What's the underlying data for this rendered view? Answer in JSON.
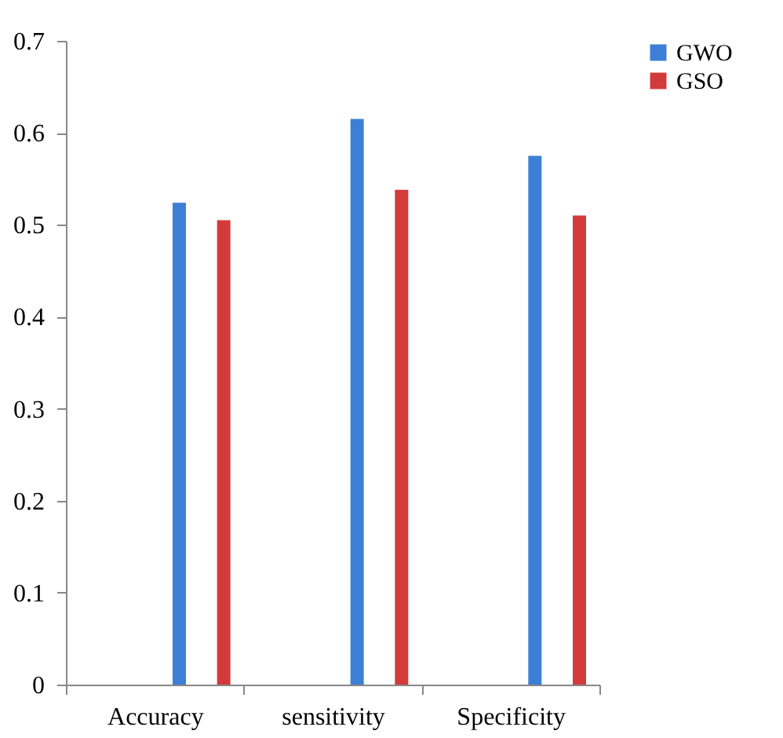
{
  "chart_data": {
    "type": "bar",
    "categories": [
      "Accuracy",
      "sensitivity",
      "Specificity"
    ],
    "series": [
      {
        "name": "GWO",
        "color": "#3d7fd6",
        "values": [
          0.524,
          0.615,
          0.575
        ]
      },
      {
        "name": "GSO",
        "color": "#d33b3b",
        "values": [
          0.505,
          0.538,
          0.51
        ]
      }
    ],
    "ylim": [
      0,
      0.7
    ],
    "yticks": [
      0,
      0.1,
      0.2,
      0.3,
      0.4,
      0.5,
      0.6,
      0.7
    ],
    "grid": false,
    "legend": "right"
  }
}
